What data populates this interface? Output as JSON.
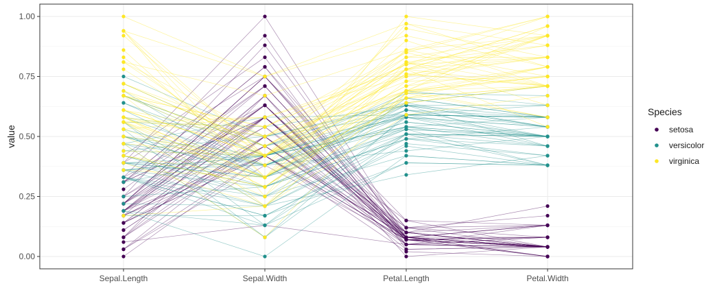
{
  "chart_data": {
    "type": "line",
    "title": "",
    "xlabel": "",
    "ylabel": "value",
    "ylim": [
      0,
      1
    ],
    "yticks": [
      "0.00",
      "0.25",
      "0.50",
      "0.75",
      "1.00"
    ],
    "ytick_values": [
      0,
      0.25,
      0.5,
      0.75,
      1.0
    ],
    "categories": [
      "Sepal.Length",
      "Sepal.Width",
      "Petal.Length",
      "Petal.Width"
    ],
    "grid": true,
    "legend": {
      "title": "Species",
      "position": "right",
      "entries": [
        {
          "name": "setosa",
          "color": "#440154"
        },
        {
          "name": "versicolor",
          "color": "#21908C"
        },
        {
          "name": "virginica",
          "color": "#FDE725"
        }
      ]
    },
    "series": [
      {
        "name": "setosa",
        "color": "#440154",
        "profiles": [
          [
            0.22,
            0.63,
            0.07,
            0.04
          ],
          [
            0.17,
            0.42,
            0.07,
            0.04
          ],
          [
            0.11,
            0.5,
            0.05,
            0.04
          ],
          [
            0.08,
            0.46,
            0.08,
            0.04
          ],
          [
            0.19,
            0.67,
            0.07,
            0.04
          ],
          [
            0.31,
            0.79,
            0.12,
            0.13
          ],
          [
            0.08,
            0.58,
            0.07,
            0.08
          ],
          [
            0.19,
            0.58,
            0.08,
            0.04
          ],
          [
            0.03,
            0.38,
            0.07,
            0.04
          ],
          [
            0.17,
            0.46,
            0.08,
            0.0
          ],
          [
            0.31,
            0.71,
            0.08,
            0.04
          ],
          [
            0.14,
            0.58,
            0.1,
            0.04
          ],
          [
            0.14,
            0.42,
            0.07,
            0.0
          ],
          [
            0.0,
            0.42,
            0.02,
            0.0
          ],
          [
            0.42,
            0.83,
            0.03,
            0.04
          ],
          [
            0.39,
            1.0,
            0.08,
            0.13
          ],
          [
            0.31,
            0.79,
            0.05,
            0.13
          ],
          [
            0.22,
            0.63,
            0.07,
            0.08
          ],
          [
            0.39,
            0.75,
            0.12,
            0.08
          ],
          [
            0.22,
            0.75,
            0.08,
            0.08
          ],
          [
            0.31,
            0.58,
            0.12,
            0.04
          ],
          [
            0.22,
            0.71,
            0.08,
            0.13
          ],
          [
            0.08,
            0.67,
            0.0,
            0.04
          ],
          [
            0.22,
            0.54,
            0.12,
            0.17
          ],
          [
            0.14,
            0.58,
            0.15,
            0.04
          ],
          [
            0.19,
            0.42,
            0.1,
            0.04
          ],
          [
            0.19,
            0.58,
            0.1,
            0.13
          ],
          [
            0.25,
            0.63,
            0.08,
            0.04
          ],
          [
            0.25,
            0.58,
            0.07,
            0.04
          ],
          [
            0.11,
            0.5,
            0.1,
            0.04
          ],
          [
            0.14,
            0.46,
            0.1,
            0.04
          ],
          [
            0.31,
            0.58,
            0.08,
            0.13
          ],
          [
            0.25,
            0.88,
            0.08,
            0.0
          ],
          [
            0.33,
            0.92,
            0.07,
            0.04
          ],
          [
            0.17,
            0.46,
            0.08,
            0.04
          ],
          [
            0.19,
            0.5,
            0.03,
            0.04
          ],
          [
            0.33,
            0.63,
            0.05,
            0.04
          ],
          [
            0.17,
            0.67,
            0.07,
            0.0
          ],
          [
            0.03,
            0.42,
            0.05,
            0.04
          ],
          [
            0.22,
            0.58,
            0.08,
            0.04
          ],
          [
            0.19,
            0.63,
            0.05,
            0.08
          ],
          [
            0.06,
            0.13,
            0.05,
            0.08
          ],
          [
            0.03,
            0.5,
            0.05,
            0.04
          ],
          [
            0.19,
            0.63,
            0.1,
            0.21
          ],
          [
            0.22,
            0.75,
            0.15,
            0.13
          ],
          [
            0.14,
            0.42,
            0.07,
            0.08
          ],
          [
            0.22,
            0.75,
            0.1,
            0.04
          ],
          [
            0.08,
            0.5,
            0.07,
            0.04
          ],
          [
            0.28,
            0.71,
            0.08,
            0.04
          ],
          [
            0.19,
            0.54,
            0.07,
            0.04
          ]
        ]
      },
      {
        "name": "versicolor",
        "color": "#21908C",
        "profiles": [
          [
            0.75,
            0.5,
            0.63,
            0.54
          ],
          [
            0.58,
            0.5,
            0.59,
            0.58
          ],
          [
            0.72,
            0.46,
            0.66,
            0.58
          ],
          [
            0.33,
            0.13,
            0.51,
            0.5
          ],
          [
            0.61,
            0.33,
            0.61,
            0.58
          ],
          [
            0.39,
            0.33,
            0.59,
            0.5
          ],
          [
            0.56,
            0.54,
            0.63,
            0.63
          ],
          [
            0.17,
            0.17,
            0.39,
            0.38
          ],
          [
            0.64,
            0.38,
            0.61,
            0.5
          ],
          [
            0.25,
            0.29,
            0.49,
            0.54
          ],
          [
            0.19,
            0.0,
            0.42,
            0.38
          ],
          [
            0.44,
            0.42,
            0.54,
            0.58
          ],
          [
            0.47,
            0.08,
            0.51,
            0.38
          ],
          [
            0.5,
            0.38,
            0.63,
            0.54
          ],
          [
            0.36,
            0.38,
            0.44,
            0.5
          ],
          [
            0.67,
            0.46,
            0.58,
            0.54
          ],
          [
            0.36,
            0.42,
            0.59,
            0.58
          ],
          [
            0.42,
            0.29,
            0.53,
            0.38
          ],
          [
            0.53,
            0.08,
            0.59,
            0.58
          ],
          [
            0.36,
            0.21,
            0.49,
            0.42
          ],
          [
            0.44,
            0.5,
            0.64,
            0.71
          ],
          [
            0.5,
            0.33,
            0.51,
            0.5
          ],
          [
            0.56,
            0.21,
            0.66,
            0.58
          ],
          [
            0.5,
            0.33,
            0.63,
            0.46
          ],
          [
            0.58,
            0.38,
            0.56,
            0.5
          ],
          [
            0.64,
            0.42,
            0.58,
            0.54
          ],
          [
            0.69,
            0.33,
            0.64,
            0.54
          ],
          [
            0.67,
            0.42,
            0.68,
            0.67
          ],
          [
            0.47,
            0.38,
            0.59,
            0.58
          ],
          [
            0.39,
            0.25,
            0.42,
            0.38
          ],
          [
            0.33,
            0.17,
            0.47,
            0.42
          ],
          [
            0.33,
            0.17,
            0.46,
            0.38
          ],
          [
            0.42,
            0.29,
            0.49,
            0.46
          ],
          [
            0.47,
            0.29,
            0.69,
            0.63
          ],
          [
            0.31,
            0.42,
            0.59,
            0.58
          ],
          [
            0.47,
            0.58,
            0.59,
            0.63
          ],
          [
            0.67,
            0.46,
            0.63,
            0.58
          ],
          [
            0.56,
            0.13,
            0.58,
            0.5
          ],
          [
            0.36,
            0.42,
            0.53,
            0.5
          ],
          [
            0.33,
            0.21,
            0.51,
            0.5
          ],
          [
            0.33,
            0.25,
            0.58,
            0.46
          ],
          [
            0.5,
            0.42,
            0.61,
            0.54
          ],
          [
            0.42,
            0.25,
            0.51,
            0.46
          ],
          [
            0.19,
            0.13,
            0.39,
            0.38
          ],
          [
            0.36,
            0.29,
            0.54,
            0.5
          ],
          [
            0.39,
            0.42,
            0.54,
            0.46
          ],
          [
            0.39,
            0.38,
            0.54,
            0.5
          ],
          [
            0.53,
            0.38,
            0.56,
            0.5
          ],
          [
            0.22,
            0.21,
            0.34,
            0.42
          ],
          [
            0.39,
            0.33,
            0.53,
            0.5
          ]
        ]
      },
      {
        "name": "virginica",
        "color": "#FDE725",
        "profiles": [
          [
            0.56,
            0.54,
            0.85,
            1.0
          ],
          [
            0.42,
            0.29,
            0.69,
            0.75
          ],
          [
            0.78,
            0.42,
            0.83,
            0.83
          ],
          [
            0.56,
            0.38,
            0.78,
            0.71
          ],
          [
            0.61,
            0.42,
            0.81,
            0.88
          ],
          [
            0.92,
            0.42,
            0.95,
            0.83
          ],
          [
            0.17,
            0.21,
            0.59,
            0.67
          ],
          [
            0.83,
            0.38,
            0.9,
            0.71
          ],
          [
            0.67,
            0.21,
            0.81,
            0.71
          ],
          [
            0.81,
            0.67,
            0.86,
            1.0
          ],
          [
            0.61,
            0.5,
            0.69,
            0.79
          ],
          [
            0.58,
            0.29,
            0.73,
            0.75
          ],
          [
            0.69,
            0.42,
            0.76,
            0.83
          ],
          [
            0.39,
            0.21,
            0.68,
            0.79
          ],
          [
            0.42,
            0.33,
            0.69,
            0.96
          ],
          [
            0.58,
            0.5,
            0.73,
            0.92
          ],
          [
            0.61,
            0.42,
            0.76,
            0.71
          ],
          [
            0.94,
            0.75,
            0.97,
            0.88
          ],
          [
            0.94,
            0.25,
            1.0,
            0.92
          ],
          [
            0.47,
            0.08,
            0.68,
            0.58
          ],
          [
            0.72,
            0.5,
            0.8,
            0.92
          ],
          [
            0.36,
            0.33,
            0.66,
            0.79
          ],
          [
            0.94,
            0.33,
            0.97,
            0.79
          ],
          [
            0.56,
            0.29,
            0.66,
            0.71
          ],
          [
            0.67,
            0.54,
            0.8,
            0.83
          ],
          [
            0.81,
            0.5,
            0.85,
            0.71
          ],
          [
            0.53,
            0.33,
            0.64,
            0.71
          ],
          [
            0.5,
            0.42,
            0.66,
            0.71
          ],
          [
            0.58,
            0.33,
            0.78,
            0.83
          ],
          [
            0.81,
            0.42,
            0.81,
            0.63
          ],
          [
            0.86,
            0.33,
            0.86,
            0.75
          ],
          [
            1.0,
            0.75,
            0.92,
            0.79
          ],
          [
            0.58,
            0.33,
            0.78,
            0.88
          ],
          [
            0.56,
            0.33,
            0.69,
            0.58
          ],
          [
            0.5,
            0.25,
            0.78,
            0.54
          ],
          [
            0.94,
            0.42,
            0.86,
            0.92
          ],
          [
            0.56,
            0.58,
            0.78,
            0.96
          ],
          [
            0.58,
            0.46,
            0.76,
            0.71
          ],
          [
            0.47,
            0.42,
            0.64,
            0.71
          ],
          [
            0.72,
            0.46,
            0.75,
            0.83
          ],
          [
            0.67,
            0.46,
            0.78,
            0.96
          ],
          [
            0.72,
            0.46,
            0.69,
            0.92
          ],
          [
            0.42,
            0.29,
            0.69,
            0.75
          ],
          [
            0.69,
            0.5,
            0.83,
            0.92
          ],
          [
            0.67,
            0.54,
            0.8,
            1.0
          ],
          [
            0.67,
            0.42,
            0.71,
            0.92
          ],
          [
            0.56,
            0.21,
            0.68,
            0.75
          ],
          [
            0.61,
            0.42,
            0.71,
            0.79
          ],
          [
            0.53,
            0.58,
            0.75,
            0.92
          ],
          [
            0.44,
            0.42,
            0.69,
            0.71
          ]
        ]
      }
    ]
  }
}
